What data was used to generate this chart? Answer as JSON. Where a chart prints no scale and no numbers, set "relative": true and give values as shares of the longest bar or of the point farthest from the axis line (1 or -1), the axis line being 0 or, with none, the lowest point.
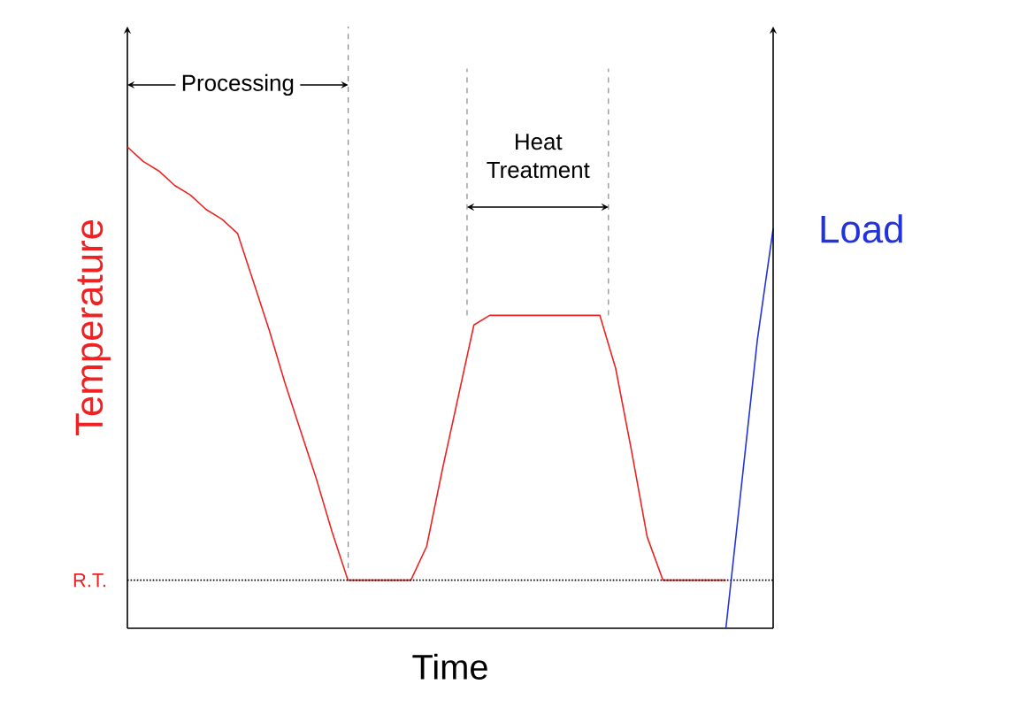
{
  "chart_data": {
    "type": "line",
    "relative": true,
    "xlabel": "Time",
    "ylabel": "Temperature",
    "categories": [
      null,
      null,
      null,
      null,
      null,
      null,
      null,
      null,
      null,
      null,
      null,
      null,
      null,
      null,
      null,
      null,
      null,
      null,
      null,
      null,
      null,
      null,
      null,
      null,
      null,
      null,
      null,
      null,
      null,
      null,
      null,
      null,
      null,
      null,
      null,
      null,
      null,
      null,
      null,
      null,
      null,
      null
    ],
    "series": [
      {
        "color": "#ee2222",
        "values": [
          1,
          0.97,
          0.95,
          0.92,
          0.9,
          0.87,
          0.85,
          0.82,
          0.72,
          0.62,
          0.51,
          0.41,
          0.31,
          0.2,
          0.1,
          0.1,
          0.1,
          0.1,
          0.1,
          0.17,
          0.33,
          0.48,
          0.63,
          0.65,
          0.65,
          0.65,
          0.65,
          0.65,
          0.65,
          0.65,
          0.65,
          0.54,
          0.37,
          0.19,
          0.1,
          0.1,
          0.1,
          0.1,
          0.1,
          null,
          null,
          null
        ]
      },
      {
        "name": "Load",
        "color": "#2233dd",
        "values": [
          null,
          null,
          null,
          null,
          null,
          null,
          null,
          null,
          null,
          null,
          null,
          null,
          null,
          null,
          null,
          null,
          null,
          null,
          null,
          null,
          null,
          null,
          null,
          null,
          null,
          null,
          null,
          null,
          null,
          null,
          null,
          null,
          null,
          null,
          null,
          null,
          null,
          null,
          0,
          0.3,
          0.6,
          0.83
        ]
      }
    ],
    "ref_lines": [
      {
        "axis": "y",
        "value": 0.1,
        "label": "R.T.",
        "line_style": "dotted"
      }
    ],
    "annotations": [
      "Processing",
      "Heat Treatment"
    ]
  }
}
